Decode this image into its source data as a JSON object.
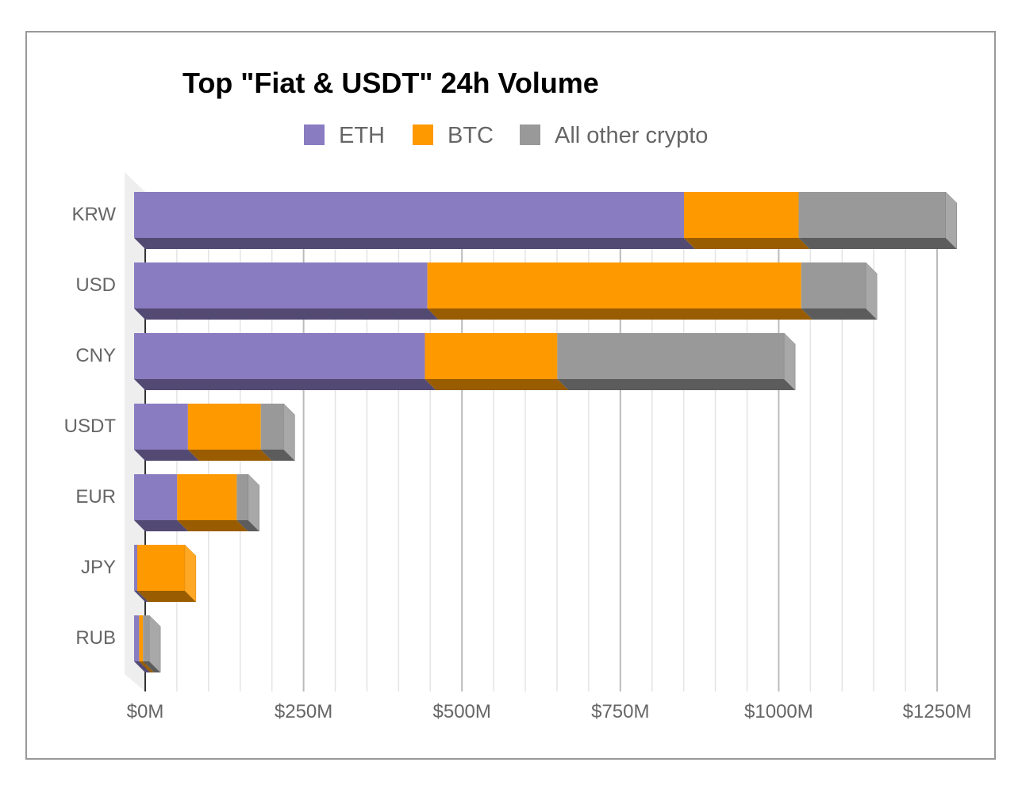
{
  "chart_data": {
    "type": "bar",
    "orientation": "horizontal",
    "stacked": true,
    "style": "3d",
    "title": "Top \"Fiat & USDT\" 24h Volume",
    "categories": [
      "KRW",
      "USD",
      "CNY",
      "USDT",
      "EUR",
      "JPY",
      "RUB"
    ],
    "series": [
      {
        "name": "ETH",
        "color": "#8a7cc1",
        "values": [
          868,
          463,
          459,
          85,
          68,
          5,
          8
        ]
      },
      {
        "name": "BTC",
        "color": "#ff9900",
        "values": [
          181,
          590,
          209,
          115,
          94,
          75,
          6
        ]
      },
      {
        "name": "All other crypto",
        "color": "#999999",
        "values": [
          232,
          102,
          358,
          36,
          18,
          0,
          10
        ]
      }
    ],
    "xaxis": {
      "ticks": [
        0,
        250,
        500,
        750,
        1000,
        1250
      ],
      "tick_labels": [
        "$0M",
        "$250M",
        "$500M",
        "$750M",
        "$1000M",
        "$1250M"
      ],
      "xlim": [
        0,
        1250
      ]
    },
    "legend_position": "top",
    "grid": true
  }
}
